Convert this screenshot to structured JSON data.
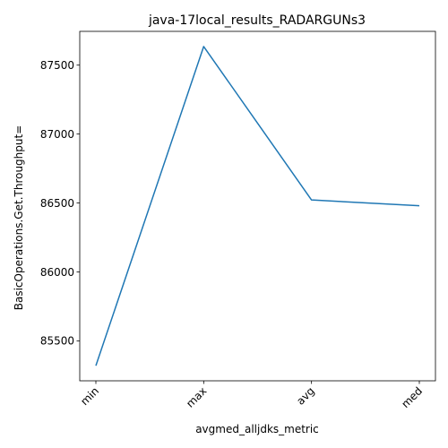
{
  "chart_data": {
    "type": "line",
    "title": "java-17local_results_RADARGUNs3",
    "xlabel": "avgmed_alljdks_metric",
    "ylabel": "BasicOperations.Get.Throughput=",
    "categories": [
      "min",
      "max",
      "avg",
      "med"
    ],
    "series": [
      {
        "values": [
          85320,
          87635,
          86522,
          86480
        ],
        "color": "#1f77b4"
      }
    ],
    "yticks": [
      85500,
      86000,
      86500,
      87000,
      87500
    ],
    "ylim": [
      85210,
      87745
    ],
    "grid": false,
    "legend": "none"
  }
}
